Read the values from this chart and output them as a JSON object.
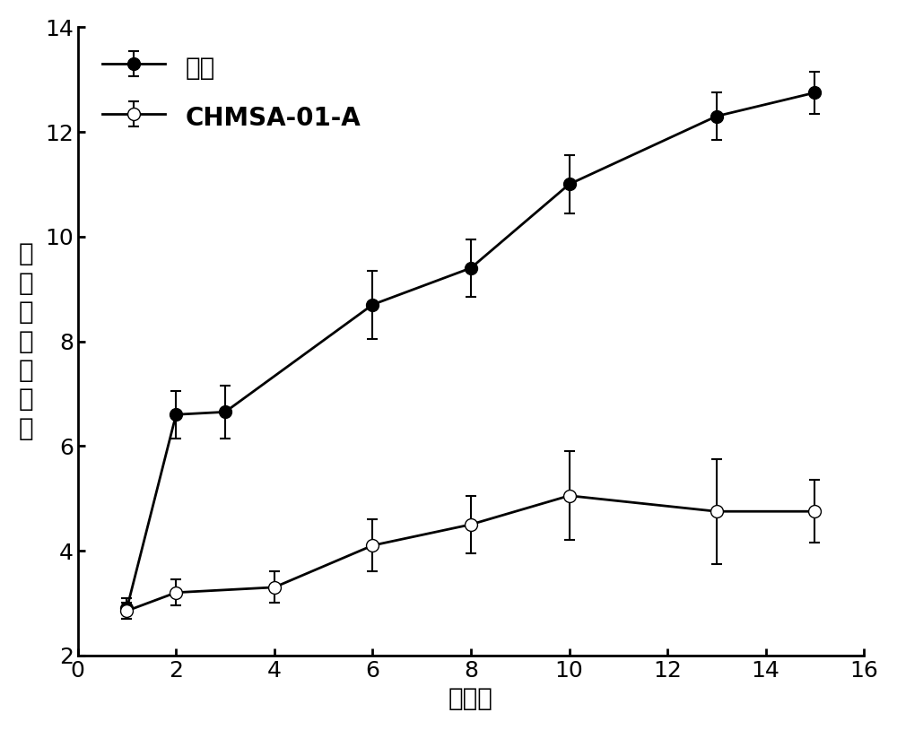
{
  "control_x": [
    1,
    2,
    3,
    6,
    8,
    10,
    13,
    15
  ],
  "control_y": [
    2.9,
    6.6,
    6.65,
    8.7,
    9.4,
    11.0,
    12.3,
    12.75
  ],
  "control_yerr": [
    0.2,
    0.45,
    0.5,
    0.65,
    0.55,
    0.55,
    0.45,
    0.4
  ],
  "treatment_x": [
    1,
    2,
    4,
    6,
    8,
    10,
    13,
    15
  ],
  "treatment_y": [
    2.85,
    3.2,
    3.3,
    4.1,
    4.5,
    5.05,
    4.75,
    4.75
  ],
  "treatment_yerr": [
    0.15,
    0.25,
    0.3,
    0.5,
    0.55,
    0.85,
    1.0,
    0.6
  ],
  "xlabel": "给药日",
  "ylabel": "平均关节炎指数",
  "legend_control": "对照",
  "legend_treatment": "CHMSA-01-A",
  "xlim": [
    0,
    16
  ],
  "ylim": [
    2,
    14
  ],
  "xticks": [
    0,
    2,
    4,
    6,
    8,
    10,
    12,
    14,
    16
  ],
  "yticks": [
    2,
    4,
    6,
    8,
    10,
    12,
    14
  ],
  "line_color": "#000000",
  "marker_size": 10,
  "linewidth": 2.0,
  "capsize": 4,
  "xlabel_fontsize": 20,
  "ylabel_fontsize": 20,
  "tick_fontsize": 18,
  "legend_fontsize": 20
}
